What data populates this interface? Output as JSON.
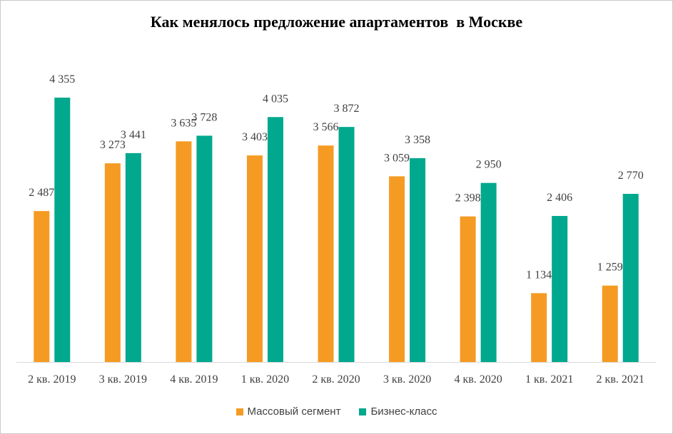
{
  "chart_data": {
    "type": "bar",
    "title": "Как менялось предложение апартаментов  в Москве",
    "categories": [
      "2 кв. 2019",
      "3 кв. 2019",
      "4 кв. 2019",
      "1 кв. 2020",
      "2 кв. 2020",
      "3 кв. 2020",
      "4 кв. 2020",
      "1 кв. 2021",
      "2 кв. 2021"
    ],
    "series": [
      {
        "name": "Массовый сегмент",
        "color": "#F59B23",
        "values": [
          2487,
          3273,
          3635,
          3403,
          3566,
          3059,
          2398,
          1134,
          1259
        ],
        "labels": [
          "2 487",
          "3 273",
          "3 635",
          "3 403",
          "3 566",
          "3 059",
          "2 398",
          "1 134",
          "1 259"
        ]
      },
      {
        "name": "Бизнес-класс",
        "color": "#00A88E",
        "values": [
          4355,
          3441,
          3728,
          4035,
          3872,
          3358,
          2950,
          2406,
          2770
        ],
        "labels": [
          "4 355",
          "3 441",
          "3 728",
          "4 035",
          "3 872",
          "3 358",
          "2 950",
          "2 406",
          "2 770"
        ]
      }
    ],
    "xlabel": "",
    "ylabel": "",
    "ylim": [
      0,
      4355
    ],
    "grid": false,
    "legend_position": "bottom"
  }
}
